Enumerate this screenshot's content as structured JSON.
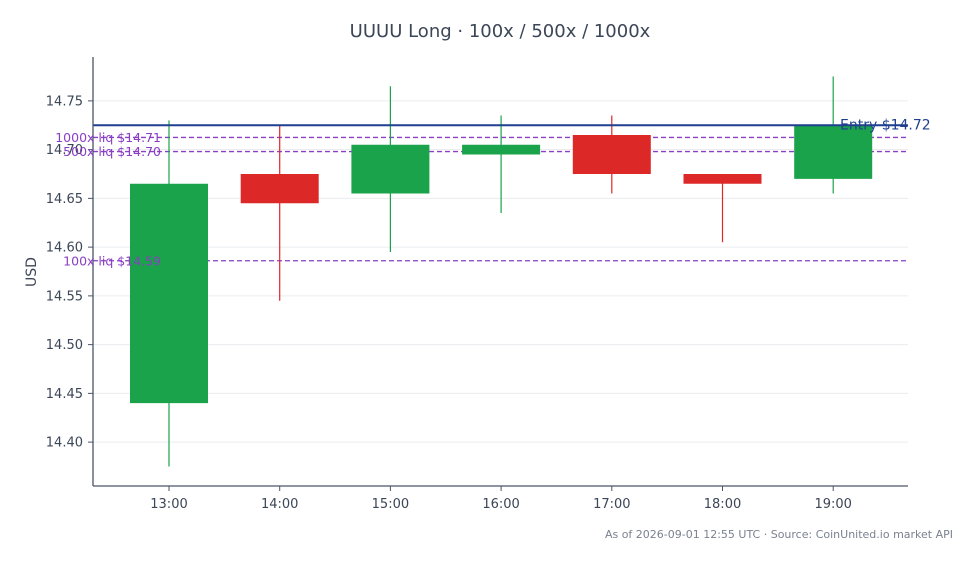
{
  "chart_data": {
    "type": "candlestick",
    "title": "UUUU Long · 100x / 500x / 1000x",
    "ylabel": "USD",
    "xlabel": "",
    "ylim": [
      14.355,
      14.795
    ],
    "yticks": [
      14.4,
      14.45,
      14.5,
      14.55,
      14.6,
      14.65,
      14.7,
      14.75
    ],
    "ytick_labels": [
      "14.40",
      "14.45",
      "14.50",
      "14.55",
      "14.60",
      "14.65",
      "14.70",
      "14.75"
    ],
    "grid": true,
    "categories": [
      "13:00",
      "14:00",
      "15:00",
      "16:00",
      "17:00",
      "18:00",
      "19:00"
    ],
    "candles": [
      {
        "time": "13:00",
        "open": 14.44,
        "high": 14.73,
        "low": 14.375,
        "close": 14.665
      },
      {
        "time": "14:00",
        "open": 14.675,
        "high": 14.725,
        "low": 14.545,
        "close": 14.645
      },
      {
        "time": "15:00",
        "open": 14.655,
        "high": 14.765,
        "low": 14.595,
        "close": 14.705
      },
      {
        "time": "16:00",
        "open": 14.695,
        "high": 14.735,
        "low": 14.635,
        "close": 14.705
      },
      {
        "time": "17:00",
        "open": 14.715,
        "high": 14.735,
        "low": 14.655,
        "close": 14.675
      },
      {
        "time": "18:00",
        "open": 14.675,
        "high": 14.675,
        "low": 14.605,
        "close": 14.665
      },
      {
        "time": "19:00",
        "open": 14.67,
        "high": 14.775,
        "low": 14.655,
        "close": 14.725
      }
    ],
    "entry": {
      "value": 14.725,
      "label": "Entry $14.72",
      "color": "#1f3f8f"
    },
    "liquidation_lines": [
      {
        "value": 14.7125,
        "label": "1000x liq $14.71"
      },
      {
        "value": 14.698,
        "label": "500x liq $14.70"
      },
      {
        "value": 14.586,
        "label": "100x liq $14.59"
      }
    ],
    "colors": {
      "up": "#1aa34a",
      "down": "#dd2828",
      "liq": "#8a3fc4",
      "grid": "#e9ecef",
      "axis": "#4a5568",
      "text": "#3b4656"
    }
  },
  "footer": {
    "text": "As of 2026-09-01 12:55 UTC · Source: CoinUnited.io market API"
  }
}
